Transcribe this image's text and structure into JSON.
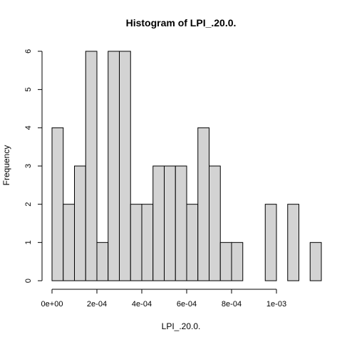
{
  "chart_data": {
    "type": "bar",
    "title": "Histogram of LPI_.20.0.",
    "xlabel": "LPI_.20.0.",
    "ylabel": "Frequency",
    "bin_width": 5e-05,
    "bin_start": 0,
    "values": [
      4,
      2,
      3,
      6,
      1,
      6,
      6,
      2,
      2,
      3,
      3,
      3,
      2,
      4,
      3,
      1,
      1,
      0,
      0,
      2,
      0,
      2,
      0,
      1
    ],
    "xlim": [
      0,
      0.0012
    ],
    "ylim": [
      0,
      6
    ],
    "xticks": [
      {
        "value": 0,
        "label": "0e+00"
      },
      {
        "value": 0.0002,
        "label": "2e-04"
      },
      {
        "value": 0.0004,
        "label": "4e-04"
      },
      {
        "value": 0.0006,
        "label": "6e-04"
      },
      {
        "value": 0.0008,
        "label": "8e-04"
      },
      {
        "value": 0.001,
        "label": "1e-03"
      }
    ],
    "yticks": [
      {
        "value": 0,
        "label": "0"
      },
      {
        "value": 1,
        "label": "1"
      },
      {
        "value": 2,
        "label": "2"
      },
      {
        "value": 3,
        "label": "3"
      },
      {
        "value": 4,
        "label": "4"
      },
      {
        "value": 5,
        "label": "5"
      },
      {
        "value": 6,
        "label": "6"
      }
    ],
    "bar_fill": "#d3d3d3",
    "bar_stroke": "#000000",
    "grid": false,
    "legend": "none"
  }
}
